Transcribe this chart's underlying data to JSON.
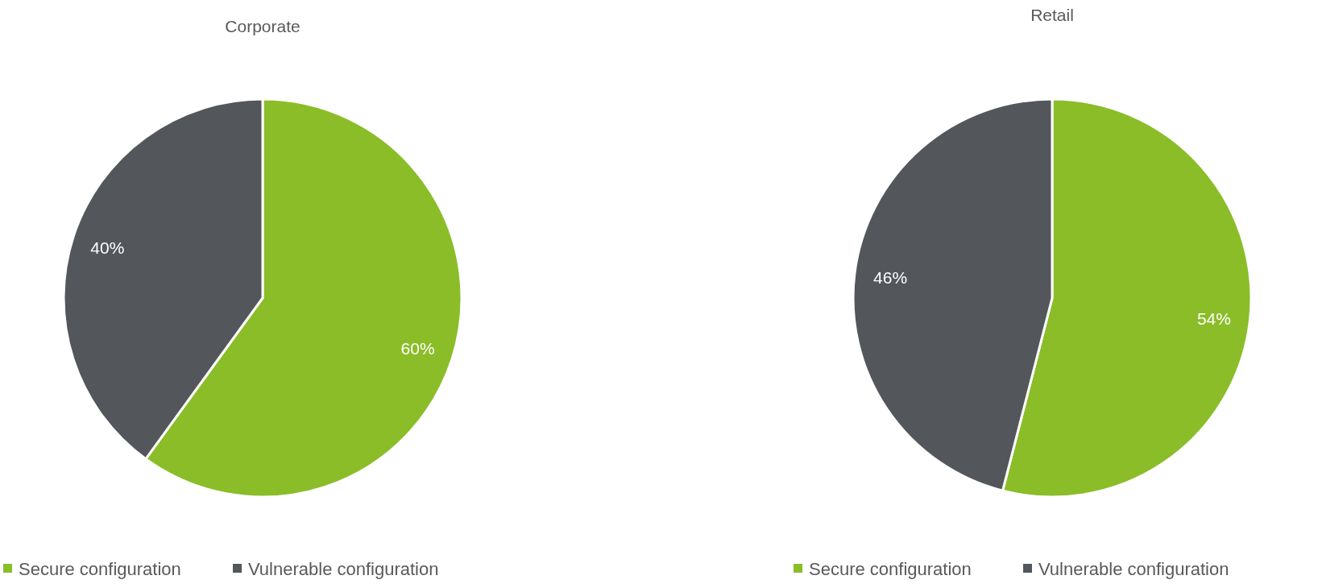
{
  "chart_data": [
    {
      "type": "pie",
      "title": "Corporate",
      "categories": [
        "Secure configuration",
        "Vulnerable configuration"
      ],
      "values": [
        60,
        40
      ],
      "colors": [
        "#8abd28",
        "#53565b"
      ],
      "value_labels": [
        "60%",
        "40%"
      ],
      "legend": "bottom"
    },
    {
      "type": "pie",
      "title": "Retail",
      "categories": [
        "Secure configuration",
        "Vulnerable configuration"
      ],
      "values": [
        54,
        46
      ],
      "colors": [
        "#8abd28",
        "#53565b"
      ],
      "value_labels": [
        "54%",
        "46%"
      ],
      "legend": "bottom"
    }
  ]
}
